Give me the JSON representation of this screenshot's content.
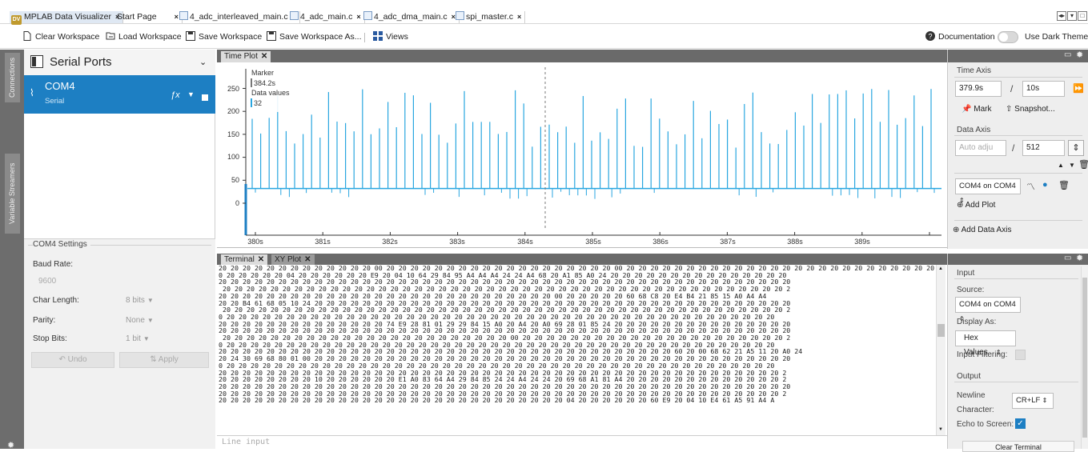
{
  "tabs": [
    {
      "label": "MPLAB Data Visualizer",
      "active": true,
      "icon": "mplab-logo-icon"
    },
    {
      "label": "Start Page",
      "active": false
    },
    {
      "label": "4_adc_interleaved_main.c",
      "active": false,
      "icon": "c-file-icon"
    },
    {
      "label": "4_adc_main.c",
      "active": false,
      "icon": "c-file-icon"
    },
    {
      "label": "4_adc_dma_main.c",
      "active": false,
      "icon": "c-file-icon"
    },
    {
      "label": "spi_master.c",
      "active": false,
      "icon": "c-file-icon"
    }
  ],
  "toolbar": {
    "clear": "Clear Workspace",
    "load": "Load Workspace",
    "save": "Save Workspace",
    "save_as": "Save Workspace As...",
    "views": "Views",
    "documentation": "Documentation",
    "dark_theme": "Use Dark Theme"
  },
  "leftstrip": {
    "connections": "Connections",
    "variable_streamers": "Variable Streamers"
  },
  "connections": {
    "header": "Serial Ports",
    "port": {
      "name": "COM4",
      "type": "Serial"
    }
  },
  "settings": {
    "title": "COM4 Settings",
    "baud_label": "Baud Rate:",
    "baud_value": "9600",
    "char_label": "Char Length:",
    "char_value": "8 bits",
    "parity_label": "Parity:",
    "parity_value": "None",
    "stop_label": "Stop Bits:",
    "stop_value": "1 bit",
    "undo": "Undo",
    "apply": "Apply"
  },
  "timeplot": {
    "tab": "Time Plot",
    "marker_label": "Marker",
    "marker_value": "384.2s",
    "data_label": "Data values",
    "data_value": "32",
    "y_ticks": [
      "250",
      "200",
      "150",
      "100",
      "50",
      "0"
    ],
    "x_ticks": [
      "380s",
      "381s",
      "382s",
      "383s",
      "384s",
      "385s",
      "386s",
      "387s",
      "388s",
      "389s"
    ]
  },
  "time_axis": {
    "title": "Time Axis",
    "start": "379.9s",
    "sep": "/",
    "window": "10s",
    "mark": "Mark",
    "snapshot": "Snapshot..."
  },
  "data_axis": {
    "title": "Data Axis",
    "auto": "Auto adju",
    "sep": "/",
    "range": "512",
    "source": "COM4 on COM4",
    "add_plot": "Add Plot",
    "add_axis": "Add Data Axis"
  },
  "terminal": {
    "tab": "Terminal",
    "xy_tab": "XY Plot",
    "line_input_placeholder": "Line input",
    "lines": [
      "20 20 20 20 20 20 20 20 20 20 20 20 20 00 20 20 20 20 20 20 20 20 20 20 20 20 20 20 20 20 20 20 20 00 20 20 20 20 20 20 20 20 20 20 20 20 20 20 20 20 20 20 20 20 20 20 20 20 20 20 20 20 20 20 20 20 20 20 20 20 20 20 20 20 20 20 20 20 20 20 20 20 20 20 20 20 20 20 20 20 20 20 20 20 20 20 20 20 20 20 20 20 20 2",
      "0 20 20 20 20 20 04 20 20 20 20 20 20 E9 20 04 10 64 29 84 95 A4 A4 A4 24 24 A4 68 20 A1 85 A0 24 20 20 20 20 20 20 20 20 20 20 20 20 20 20 20",
      "20 20 20 20 20 20 20 20 20 20 20 20 20 20 20 20 20 20 20 20 20 20 20 20 20 20 20 20 20 20 20 20 20 20 20 20 20 20 20 20 20 20 20 20 20 20 20 20",
      " 20 20 20 20 20 20 20 20 20 20 20 20 20 20 20 20 20 20 20 20 20 20 20 20 20 20 20 20 20 20 20 20 20 20 20 20 20 20 20 20 20 20 20 20 20 20 20 2",
      "20 20 20 20 20 20 20 20 20 20 20 20 20 20 20 20 20 20 20 20 20 20 20 20 20 20 20 20 00 20 20 20 20 20 60 68 C8 20 E4 B4 21 85 15 A0 A4 A4",
      "20 20 B4 61 68 05 10 24 20 20 20 20 20 20 20 20 20 20 20 20 20 20 20 20 20 20 20 20 20 20 20 20 20 20 20 20 20 20 20 20 20 20 20 20 20 20 20 20",
      " 20 20 20 20 20 20 20 20 20 20 20 20 20 20 20 20 20 20 20 20 20 20 20 20 20 20 20 20 20 20 20 20 20 20 20 20 20 20 20 20 20 20 20 20 20 20 20 2",
      "0 20 20 20 20 20 20 20 20 20 20 20 20 20 20 20 20 20 20 20 20 20 20 20 20 20 20 20 20 20 20 20 20 20 20 20 20 20 20 20 20 20 20 20 20 20 20",
      "20 20 20 20 20 20 20 20 20 20 20 20 20 20 74 E9 28 81 01 29 29 84 15 A0 20 A4 20 A0 69 28 01 85 24 20 20 20 20 20 20 20 20 20 20 20 20 20 20 20",
      "20 20 20 20 20 20 20 20 20 20 20 20 20 20 20 20 20 20 20 20 20 20 20 20 20 20 20 20 20 20 20 20 20 20 20 20 20 20 20 20 20 20 20 20 20 20 20 20",
      " 20 20 20 20 20 20 20 20 20 20 20 20 20 20 20 20 20 20 20 20 20 20 20 20 00 20 20 20 20 20 20 20 20 20 20 20 20 20 20 20 20 20 20 20 20 20 20 2",
      "0 20 20 20 20 20 20 20 20 20 20 20 20 20 20 20 20 20 20 20 20 20 20 20 20 20 20 20 20 20 20 20 20 20 20 20 20 20 20 20 20 20 20 20 20 20 20",
      "20 20 20 20 20 20 20 20 20 20 20 20 20 20 20 20 20 20 20 20 20 20 20 20 20 20 20 20 20 20 20 20 20 20 20 20 20 20 60 20 00 68 62 21 A5 11 20 A0 24",
      "20 24 30 69 68 80 01 00 20 20 20 20 20 20 20 20 20 20 20 20 20 20 20 20 20 20 20 20 20 20 20 20 20 20 20 20 20 20 20 20 20 20 20 20 20 20 20 20",
      "0 20 20 20 20 20 20 20 20 20 20 20 20 20 20 20 20 20 20 20 20 20 20 20 20 20 20 20 20 20 20 20 20 20 20 20 20 20 20 20 20 20 20 20 20 20 20",
      "20 20 20 20 20 20 20 20 20 20 20 20 20 20 20 20 20 20 20 20 20 20 20 20 20 20 20 20 20 20 20 20 20 20 20 20 20 20 20 20 20 20 20 20 20 20 20 2",
      "20 20 20 20 20 20 20 20 10 20 20 20 20 20 20 E1 A0 83 64 A4 29 84 85 24 24 A4 24 24 20 69 68 A1 81 A4 20 20 20 20 20 20 20 20 20 20 20 20 20 2",
      "20 20 20 20 20 20 20 20 20 20 20 20 20 20 20 20 20 20 20 20 20 20 20 20 20 20 20 20 20 20 20 20 20 20 20 20 20 20 20 20 20 20 20 20 20 20 20 20",
      "20 20 20 20 20 20 20 20 20 20 20 20 20 20 20 20 20 20 20 20 20 20 20 20 20 20 20 20 20 20 20 20 20 20 20 20 20 20 20 20 20 20 20 20 20 20 20 2",
      "20 20 20 20 20 20 20 20 20 20 20 20 20 20 20 20 20 20 20 20 20 20 20 20 20 20 20 20 20 04 20 20 20 20 20 20 60 E9 20 04 10 E4 61 A5 91 A4 A"
    ]
  },
  "input_panel": {
    "input_title": "Input",
    "source_label": "Source:",
    "source_value": "COM4 on COM4",
    "display_label": "Display As:",
    "display_value": "Hex Values",
    "filter_label": "Input Filtering:",
    "output_title": "Output",
    "newline_label_1": "Newline",
    "newline_label_2": "Character:",
    "newline_value": "CR+LF",
    "echo_label": "Echo to Screen:",
    "clear_terminal": "Clear Terminal"
  },
  "colors": {
    "accent": "#1d7fc3",
    "signal": "#29a6e0",
    "panel_dark": "#6a6a6a"
  }
}
